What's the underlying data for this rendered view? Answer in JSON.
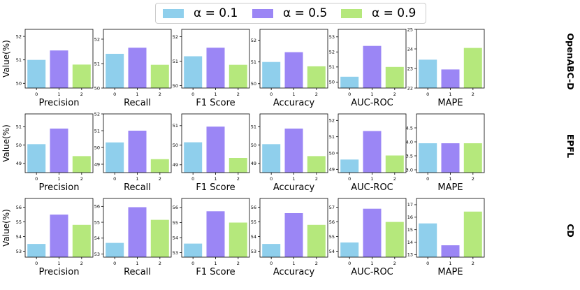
{
  "legend": {
    "entries": [
      {
        "label": "α = 0.1",
        "color": "#8fcfec"
      },
      {
        "label": "α = 0.5",
        "color": "#9b86f5"
      },
      {
        "label": "α = 0.9",
        "color": "#b5e87c"
      }
    ]
  },
  "ylabel": "Value(%)",
  "chart_data": [
    {
      "type": "bar",
      "dataset": "OpenABC-D",
      "title": "Precision",
      "categories": [
        "0",
        "1",
        "2"
      ],
      "values": [
        51.0,
        51.4,
        50.8
      ],
      "ylim": [
        49.8,
        52.3
      ],
      "yticks": [
        50,
        51,
        52
      ]
    },
    {
      "type": "bar",
      "dataset": "OpenABC-D",
      "title": "Recall",
      "categories": [
        "0",
        "1",
        "2"
      ],
      "values": [
        51.4,
        51.65,
        50.95
      ],
      "ylim": [
        50.0,
        52.4
      ],
      "yticks": [
        50,
        51,
        52
      ]
    },
    {
      "type": "bar",
      "dataset": "OpenABC-D",
      "title": "F1 Score",
      "categories": [
        "0",
        "1",
        "2"
      ],
      "values": [
        51.2,
        51.55,
        50.85
      ],
      "ylim": [
        49.9,
        52.3
      ],
      "yticks": [
        50,
        51,
        52
      ]
    },
    {
      "type": "bar",
      "dataset": "OpenABC-D",
      "title": "Accuracy",
      "categories": [
        "0",
        "1",
        "2"
      ],
      "values": [
        51.0,
        51.45,
        50.8
      ],
      "ylim": [
        49.8,
        52.5
      ],
      "yticks": [
        50,
        51,
        52
      ]
    },
    {
      "type": "bar",
      "dataset": "OpenABC-D",
      "title": "AUC-ROC",
      "categories": [
        "0",
        "1",
        "2"
      ],
      "values": [
        50.35,
        52.4,
        51.0
      ],
      "ylim": [
        49.6,
        53.5
      ],
      "yticks": [
        50,
        51,
        52,
        53
      ]
    },
    {
      "type": "bar",
      "dataset": "OpenABC-D",
      "title": "MAPE",
      "categories": [
        "0",
        "1",
        "2"
      ],
      "values": [
        23.45,
        22.95,
        24.05
      ],
      "ylim": [
        22.0,
        25.0
      ],
      "yticks": [
        22,
        23,
        24,
        25
      ]
    },
    {
      "type": "bar",
      "dataset": "EPFL",
      "title": "Precision",
      "categories": [
        "0",
        "1",
        "2"
      ],
      "values": [
        50.05,
        50.9,
        49.4
      ],
      "ylim": [
        48.5,
        51.7
      ],
      "yticks": [
        49,
        50,
        51
      ]
    },
    {
      "type": "bar",
      "dataset": "EPFL",
      "title": "Recall",
      "categories": [
        "0",
        "1",
        "2"
      ],
      "values": [
        50.3,
        51.0,
        49.3
      ],
      "ylim": [
        48.5,
        52.0
      ],
      "yticks": [
        49,
        50,
        51,
        52
      ]
    },
    {
      "type": "bar",
      "dataset": "EPFL",
      "title": "F1 Score",
      "categories": [
        "0",
        "1",
        "2"
      ],
      "values": [
        50.15,
        50.95,
        49.35
      ],
      "ylim": [
        48.6,
        51.6
      ],
      "yticks": [
        49,
        50,
        51
      ]
    },
    {
      "type": "bar",
      "dataset": "EPFL",
      "title": "Accuracy",
      "categories": [
        "0",
        "1",
        "2"
      ],
      "values": [
        50.05,
        50.9,
        49.4
      ],
      "ylim": [
        48.5,
        51.7
      ],
      "yticks": [
        49,
        50,
        51
      ]
    },
    {
      "type": "bar",
      "dataset": "EPFL",
      "title": "AUC-ROC",
      "categories": [
        "0",
        "1",
        "2"
      ],
      "values": [
        49.6,
        51.35,
        49.85
      ],
      "ylim": [
        48.8,
        52.4
      ],
      "yticks": [
        49,
        50,
        51,
        52
      ]
    },
    {
      "type": "bar",
      "dataset": "EPFL",
      "title": "MAPE",
      "categories": [
        "0",
        "1",
        "2"
      ],
      "values": [
        3.95,
        3.95,
        3.95
      ],
      "ylim": [
        2.9,
        5.0
      ],
      "yticks": [
        3.0,
        3.5,
        4.0,
        4.5
      ]
    },
    {
      "type": "bar",
      "dataset": "CD",
      "title": "Precision",
      "categories": [
        "0",
        "1",
        "2"
      ],
      "values": [
        53.5,
        55.5,
        54.8
      ],
      "ylim": [
        52.6,
        56.6
      ],
      "yticks": [
        53,
        54,
        55,
        56
      ]
    },
    {
      "type": "bar",
      "dataset": "CD",
      "title": "Recall",
      "categories": [
        "0",
        "1",
        "2"
      ],
      "values": [
        53.7,
        55.95,
        55.15
      ],
      "ylim": [
        52.8,
        56.5
      ],
      "yticks": [
        53,
        54,
        55,
        56
      ]
    },
    {
      "type": "bar",
      "dataset": "CD",
      "title": "F1 Score",
      "categories": [
        "0",
        "1",
        "2"
      ],
      "values": [
        53.6,
        55.75,
        55.0
      ],
      "ylim": [
        52.7,
        56.6
      ],
      "yticks": [
        53,
        54,
        55,
        56
      ]
    },
    {
      "type": "bar",
      "dataset": "CD",
      "title": "Accuracy",
      "categories": [
        "0",
        "1",
        "2"
      ],
      "values": [
        53.5,
        55.6,
        54.8
      ],
      "ylim": [
        52.6,
        56.6
      ],
      "yticks": [
        53,
        54,
        55,
        56
      ]
    },
    {
      "type": "bar",
      "dataset": "CD",
      "title": "AUC-ROC",
      "categories": [
        "0",
        "1",
        "2"
      ],
      "values": [
        54.6,
        56.9,
        56.0
      ],
      "ylim": [
        53.6,
        57.6
      ],
      "yticks": [
        54,
        55,
        56,
        57
      ]
    },
    {
      "type": "bar",
      "dataset": "CD",
      "title": "MAPE",
      "categories": [
        "0",
        "1",
        "2"
      ],
      "values": [
        15.5,
        13.75,
        16.45
      ],
      "ylim": [
        12.8,
        17.5
      ],
      "yticks": [
        13,
        14,
        15,
        16,
        17
      ]
    }
  ]
}
